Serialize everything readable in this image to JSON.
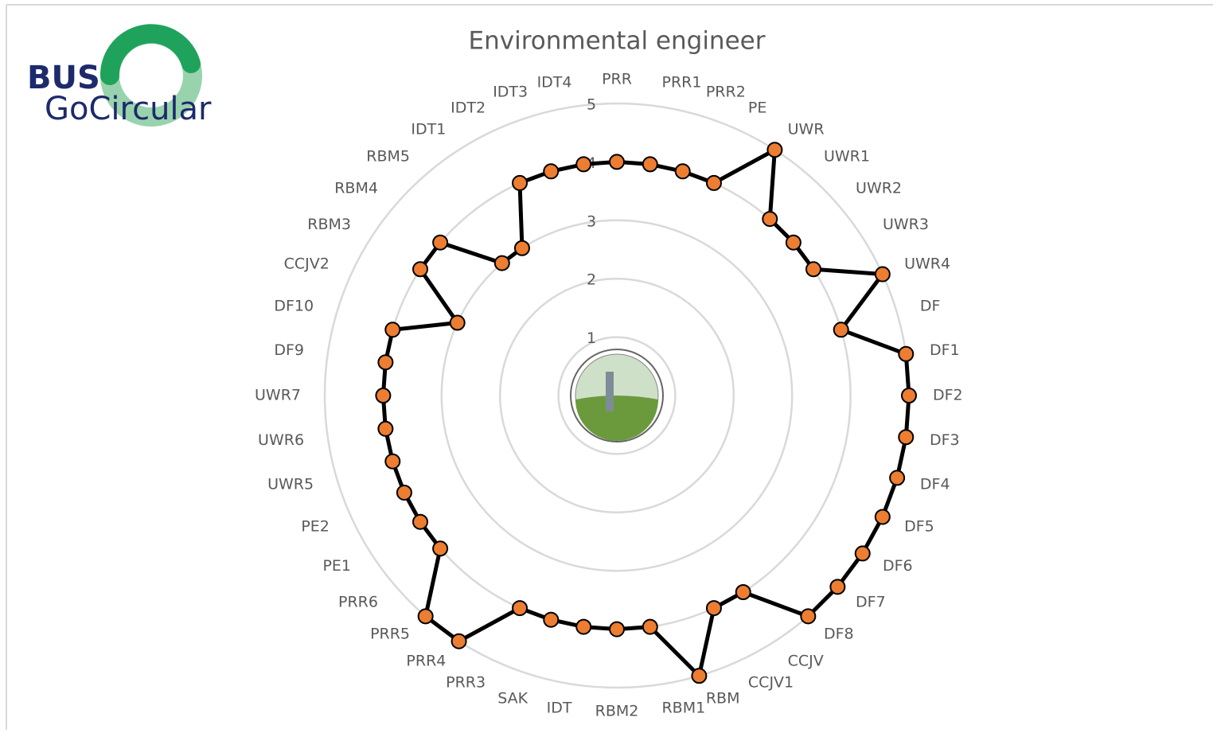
{
  "logo": {
    "line1": "BUS",
    "line2": "GoCircular"
  },
  "chart_data": {
    "type": "radar",
    "title": "Environmental engineer",
    "categories": [
      "PRR",
      "PRR1",
      "PRR2",
      "PE",
      "UWR",
      "UWR1",
      "UWR2",
      "UWR3",
      "UWR4",
      "DF",
      "DF1",
      "DF2",
      "DF3",
      "DF4",
      "DF5",
      "DF6",
      "DF7",
      "DF8",
      "CCJV",
      "CCJV1",
      "RBM",
      "RBM1",
      "RBM2",
      "IDT",
      "SAK",
      "PRR3",
      "PRR4",
      "PRR5",
      "PRR6",
      "PE1",
      "PE2",
      "UWR5",
      "UWR6",
      "UWR7",
      "DF9",
      "DF10",
      "CCJV2",
      "RBM3",
      "RBM4",
      "RBM5",
      "IDT1",
      "IDT2",
      "IDT3",
      "IDT4"
    ],
    "values": [
      4,
      4,
      4,
      4,
      5,
      4,
      4,
      4,
      5,
      4,
      5,
      5,
      5,
      5,
      5,
      5,
      5,
      5,
      4,
      4,
      5,
      4,
      4,
      4,
      4,
      4,
      5,
      5,
      4,
      4,
      4,
      4,
      4,
      4,
      4,
      4,
      3,
      4,
      4,
      3,
      3,
      4,
      4,
      4
    ],
    "rlim": [
      0,
      5
    ],
    "rticks": [
      1,
      2,
      3,
      4,
      5
    ],
    "grid": true,
    "line_color": "#000000",
    "marker_color": "#ed7d31"
  }
}
